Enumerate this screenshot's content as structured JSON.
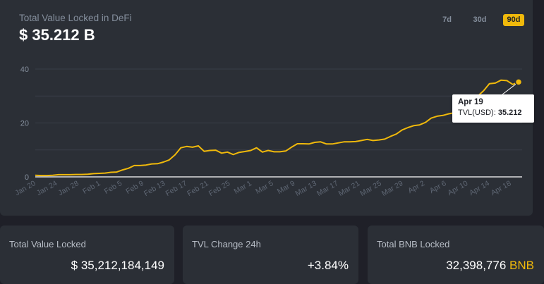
{
  "header": {
    "title": "Total Value Locked in DeFi",
    "value": "$ 35.212 B"
  },
  "ranges": {
    "d7": "7d",
    "d30": "30d",
    "d90": "90d",
    "active": "90d"
  },
  "colors": {
    "accent": "#f0b90b",
    "grid": "#3a3f48",
    "axis_text": "#5e6673"
  },
  "tooltip": {
    "date": "Apr 19",
    "label": "TVL(USD):",
    "value": "35.212"
  },
  "chart_data": {
    "type": "line",
    "title": "Total Value Locked in DeFi",
    "ylim": [
      0,
      40
    ],
    "yticks": [
      0,
      20,
      40
    ],
    "xticks": [
      "Jan 20",
      "Jan 24",
      "Jan 28",
      "Feb 1",
      "Feb 5",
      "Feb 9",
      "Feb 13",
      "Feb 17",
      "Feb 21",
      "Feb 25",
      "Mar 1",
      "Mar 5",
      "Mar 9",
      "Mar 13",
      "Mar 17",
      "Mar 21",
      "Mar 25",
      "Mar 29",
      "Apr 2",
      "Apr 6",
      "Apr 10",
      "Apr 14",
      "Apr 18"
    ],
    "series": [
      {
        "name": "TVL(USD)",
        "values": [
          0.6,
          0.5,
          0.5,
          0.6,
          0.8,
          0.8,
          0.8,
          0.9,
          0.9,
          1.0,
          1.2,
          1.3,
          1.4,
          1.7,
          1.8,
          2.6,
          3.2,
          4.2,
          4.2,
          4.4,
          4.8,
          4.9,
          5.5,
          6.3,
          8.2,
          10.8,
          11.3,
          11.0,
          11.5,
          9.5,
          9.8,
          9.9,
          8.8,
          9.2,
          8.3,
          9.1,
          9.4,
          9.8,
          10.8,
          9.2,
          9.8,
          9.3,
          9.3,
          9.6,
          11.0,
          12.3,
          12.3,
          12.2,
          12.8,
          13.0,
          12.2,
          12.2,
          12.6,
          13.0,
          13.0,
          13.1,
          13.5,
          13.9,
          13.5,
          13.7,
          14.0,
          15.0,
          15.9,
          17.4,
          18.3,
          19.0,
          19.3,
          20.2,
          21.8,
          22.5,
          22.8,
          23.4,
          23.8,
          25.0,
          27.8,
          29.6,
          30.0,
          32.0,
          34.6,
          34.8,
          35.9,
          35.7,
          34.3,
          35.2
        ]
      }
    ]
  },
  "stats": [
    {
      "label": "Total Value Locked",
      "value": "$ 35,212,184,149",
      "unit": ""
    },
    {
      "label": "TVL Change 24h",
      "value": "+3.84%",
      "unit": ""
    },
    {
      "label": "Total BNB Locked",
      "value": "32,398,776",
      "unit": "BNB"
    }
  ]
}
